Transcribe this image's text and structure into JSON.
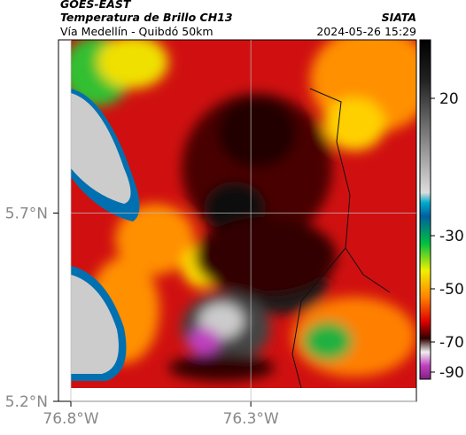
{
  "header": {
    "satellite": "GOES-EAST",
    "title": "Temperatura de Brillo CH13",
    "source": "SIATA",
    "subtitle": "Vía Medellín - Quibdó 50km",
    "datetime": "2024-05-26 15:29"
  },
  "map": {
    "xlim": [
      -76.8,
      -75.84
    ],
    "ylim": [
      5.2,
      6.16
    ],
    "xticks": [
      {
        "value": -76.8,
        "label": "76.8°W"
      },
      {
        "value": -76.3,
        "label": "76.3°W"
      }
    ],
    "yticks": [
      {
        "value": 5.7,
        "label": "5.7°N"
      },
      {
        "value": 5.2,
        "label": "5.2°N"
      }
    ]
  },
  "colorbar": {
    "ticks": [
      20,
      -30,
      -50,
      -70,
      -90
    ]
  }
}
